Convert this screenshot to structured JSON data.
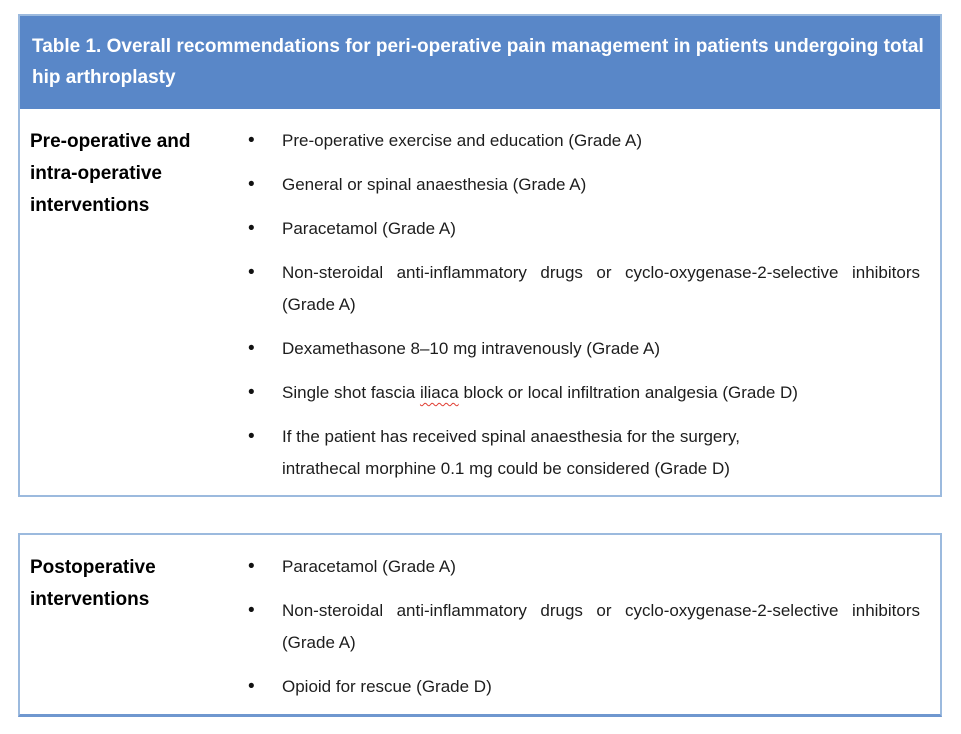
{
  "colors": {
    "header_blue": "#5987c8",
    "table_border_light_blue": "#9cbade",
    "table_bottom_border_blue": "#6f97cf",
    "body_text": "#1d1d1d",
    "title_text": "#ffffff",
    "spellcheck_squiggle_red": "#e03c31"
  },
  "table1": {
    "title": "Table 1. Overall recommendations for peri-operative pain management in patients undergoing total hip arthroplasty",
    "row_header": "Pre-operative and intra-operative interventions",
    "items": [
      {
        "text": "Pre-operative exercise and education (Grade A)"
      },
      {
        "text": "General or spinal anaesthesia (Grade A)"
      },
      {
        "text": "Paracetamol (Grade A)"
      },
      {
        "text": "Non-steroidal anti-inflammatory drugs or cyclo-oxygenase-2-selective inhibitors (Grade A)"
      },
      {
        "text": "Dexamethasone 8–10 mg intravenously (Grade A)"
      },
      {
        "text_before_misspelled": "Single shot fascia ",
        "misspelled_word": "iliaca",
        "text_after_misspelled": " block or local infiltration analgesia (Grade D)"
      },
      {
        "line1": "If the patient has received spinal anaesthesia for the surgery,",
        "line2": "intrathecal morphine 0.1 mg could be considered (Grade D)"
      }
    ]
  },
  "table2": {
    "row_header": "Postoperative interventions",
    "items": [
      {
        "text": "Paracetamol (Grade A)"
      },
      {
        "text": "Non-steroidal anti-inflammatory drugs or cyclo-oxygenase-2-selective inhibitors (Grade A)"
      },
      {
        "text": "Opioid for rescue (Grade D)"
      }
    ]
  }
}
